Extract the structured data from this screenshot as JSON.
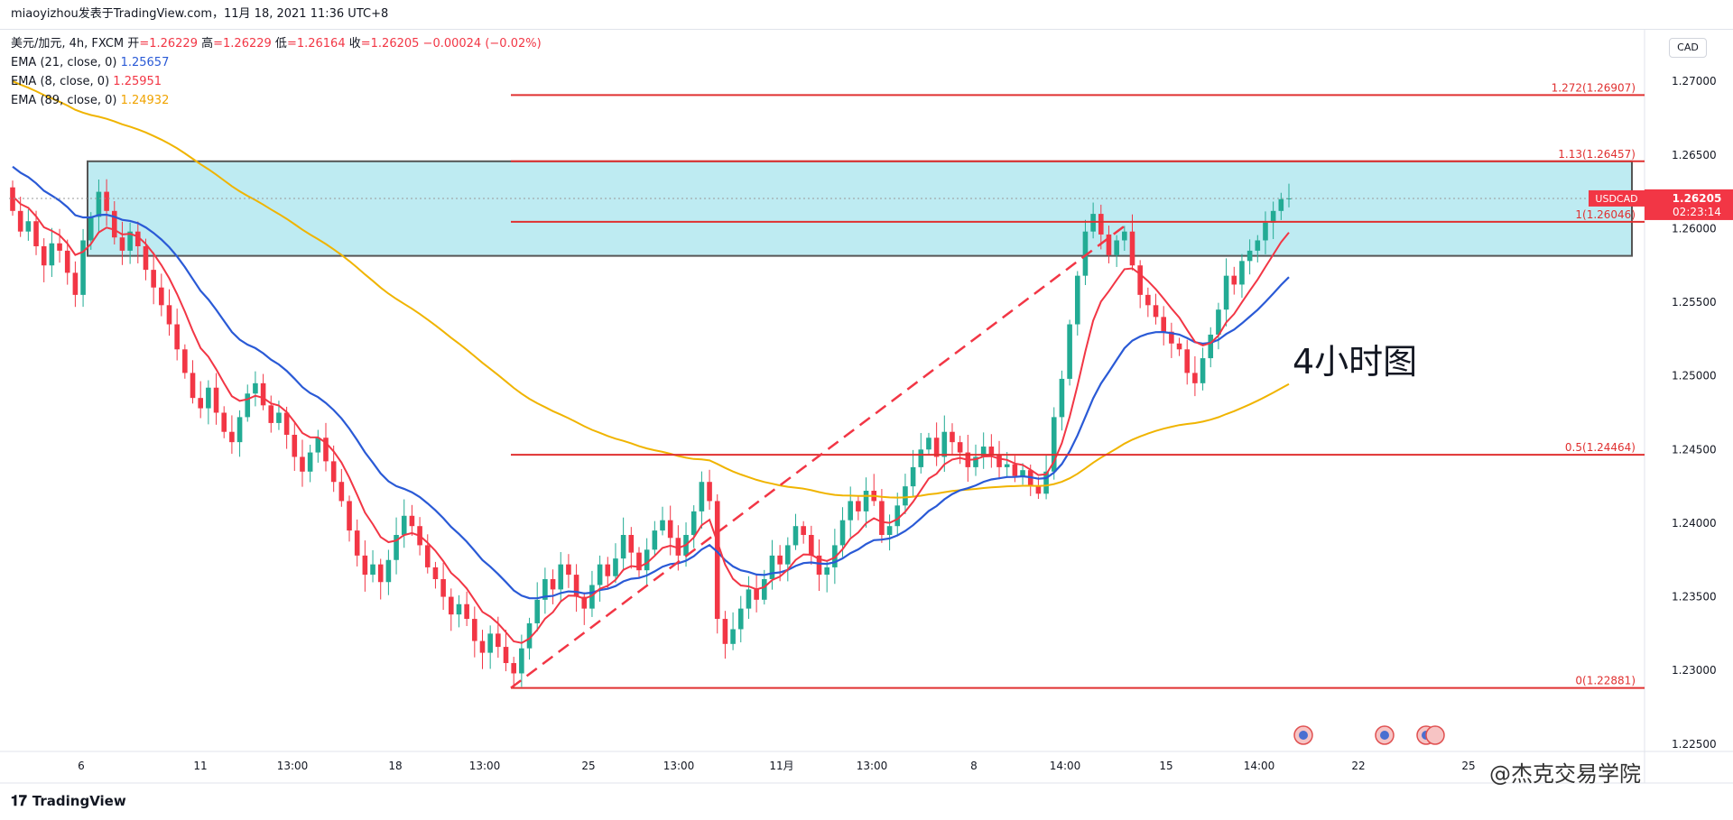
{
  "header": {
    "attribution": "miaoyizhou发表于TradingView.com，11月 18, 2021 11:36 UTC+8"
  },
  "legend": {
    "symbol_line": {
      "name": "美元/加元, 4h, FXCM",
      "open_label": "开",
      "open": "=1.26229",
      "high_label": "高",
      "high": "=1.26229",
      "low_label": "低",
      "low": "=1.26164",
      "close_label": "收",
      "close": "=1.26205",
      "change": "−0.00024 (−0.02%)"
    },
    "ema21": {
      "label": "EMA (21, close, 0)",
      "value": "1.25657"
    },
    "ema8": {
      "label": "EMA (8, close, 0)",
      "value": "1.25951"
    },
    "ema89": {
      "label": "EMA (89, close, 0)",
      "value": "1.24932"
    }
  },
  "currency_button": "CAD",
  "timeframe_label": "4小时图",
  "footer": {
    "brand": "TradingView",
    "wechat": "@杰克交易学院"
  },
  "colors": {
    "up": "#22ab94",
    "down": "#f23645",
    "ema21": "#2a5ad6",
    "ema8": "#f23645",
    "ema89": "#f0b400",
    "zone": "#b3e8f0"
  },
  "chart_data": {
    "type": "candlestick",
    "symbol": "USDCAD",
    "last_price": "1.26205",
    "countdown": "02:23:14",
    "ylim": [
      1.2245,
      1.2735
    ],
    "y_ticks": [
      "1.27000",
      "1.26500",
      "1.26000",
      "1.25500",
      "1.25000",
      "1.24500",
      "1.24000",
      "1.23500",
      "1.23000",
      "1.22500"
    ],
    "x_ticks": [
      "6",
      "11",
      "13:00",
      "18",
      "13:00",
      "25",
      "13:00",
      "11月",
      "13:00",
      "8",
      "14:00",
      "15",
      "14:00",
      "22",
      "25"
    ],
    "fib_levels": [
      {
        "label": "1.272(1.26907)",
        "value": 1.26907
      },
      {
        "label": "1.13(1.26457)",
        "value": 1.26457
      },
      {
        "label": "1(1.26046)",
        "value": 1.26046
      },
      {
        "label": "0.5(1.24464)",
        "value": 1.24464
      },
      {
        "label": "0(1.22881)",
        "value": 1.22881
      }
    ],
    "zone": {
      "top": 1.26457,
      "bottom": 1.25815
    },
    "swing_points": {
      "low": 1.22881,
      "high": 1.26046
    },
    "series": [
      {
        "name": "USDCAD",
        "closes": [
          1.2612,
          1.2598,
          1.2605,
          1.2588,
          1.2575,
          1.259,
          1.2585,
          1.257,
          1.2555,
          1.2592,
          1.2608,
          1.2625,
          1.2612,
          1.2594,
          1.2585,
          1.2598,
          1.2588,
          1.2572,
          1.256,
          1.2548,
          1.2535,
          1.2518,
          1.2502,
          1.2485,
          1.2478,
          1.2492,
          1.2475,
          1.2462,
          1.2455,
          1.2472,
          1.2488,
          1.2495,
          1.248,
          1.2468,
          1.2475,
          1.246,
          1.2445,
          1.2435,
          1.2448,
          1.2458,
          1.2442,
          1.2428,
          1.2415,
          1.2395,
          1.2378,
          1.2365,
          1.2372,
          1.236,
          1.2375,
          1.2392,
          1.2405,
          1.2398,
          1.2385,
          1.237,
          1.2362,
          1.235,
          1.2338,
          1.2345,
          1.2335,
          1.232,
          1.2312,
          1.2325,
          1.2316,
          1.2305,
          1.2298,
          1.2315,
          1.2332,
          1.2348,
          1.2362,
          1.2355,
          1.2372,
          1.2365,
          1.235,
          1.2342,
          1.2358,
          1.2372,
          1.2364,
          1.2376,
          1.2392,
          1.238,
          1.2368,
          1.2382,
          1.2395,
          1.2402,
          1.239,
          1.2378,
          1.2392,
          1.2408,
          1.2428,
          1.2415,
          1.2335,
          1.2318,
          1.2328,
          1.2342,
          1.2355,
          1.2348,
          1.2362,
          1.2378,
          1.2372,
          1.2385,
          1.2398,
          1.2392,
          1.2378,
          1.2365,
          1.237,
          1.2385,
          1.2402,
          1.2415,
          1.2408,
          1.2422,
          1.2415,
          1.2392,
          1.2398,
          1.2412,
          1.2425,
          1.2438,
          1.245,
          1.2458,
          1.2445,
          1.2462,
          1.2455,
          1.2448,
          1.2438,
          1.2445,
          1.2452,
          1.2446,
          1.2438,
          1.244,
          1.2432,
          1.2436,
          1.2425,
          1.242,
          1.2435,
          1.2472,
          1.2498,
          1.2535,
          1.2568,
          1.2598,
          1.261,
          1.2596,
          1.2582,
          1.2592,
          1.2598,
          1.2575,
          1.2555,
          1.2548,
          1.254,
          1.253,
          1.2522,
          1.2518,
          1.2502,
          1.2495,
          1.2512,
          1.2528,
          1.2545,
          1.2568,
          1.2562,
          1.2578,
          1.2585,
          1.2592,
          1.2604,
          1.2612,
          1.262,
          1.26205
        ]
      }
    ]
  }
}
